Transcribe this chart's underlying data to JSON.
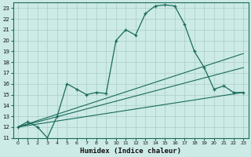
{
  "xlabel": "Humidex (Indice chaleur)",
  "bg_color": "#cceae6",
  "grid_color": "#aaccc8",
  "line_color": "#1a6b5a",
  "xlim": [
    -0.5,
    23.5
  ],
  "ylim": [
    11,
    23.5
  ],
  "yticks": [
    11,
    12,
    13,
    14,
    15,
    16,
    17,
    18,
    19,
    20,
    21,
    22,
    23
  ],
  "xticks": [
    0,
    1,
    2,
    3,
    4,
    5,
    6,
    7,
    8,
    9,
    10,
    11,
    12,
    13,
    14,
    15,
    16,
    17,
    18,
    19,
    20,
    21,
    22,
    23
  ],
  "main_line": [
    12,
    12.5,
    12,
    11,
    13,
    16,
    15.5,
    15,
    15.2,
    15.1,
    20,
    21,
    20.5,
    22.5,
    23.2,
    23.3,
    23.2,
    21.5,
    19,
    17.5,
    15.5,
    15.8,
    15.2,
    15.2
  ],
  "trend1_x": [
    0,
    23
  ],
  "trend1_y": [
    12,
    15.2
  ],
  "trend2_x": [
    0,
    23
  ],
  "trend2_y": [
    12,
    17.5
  ],
  "trend3_x": [
    0,
    23
  ],
  "trend3_y": [
    12,
    18.8
  ]
}
